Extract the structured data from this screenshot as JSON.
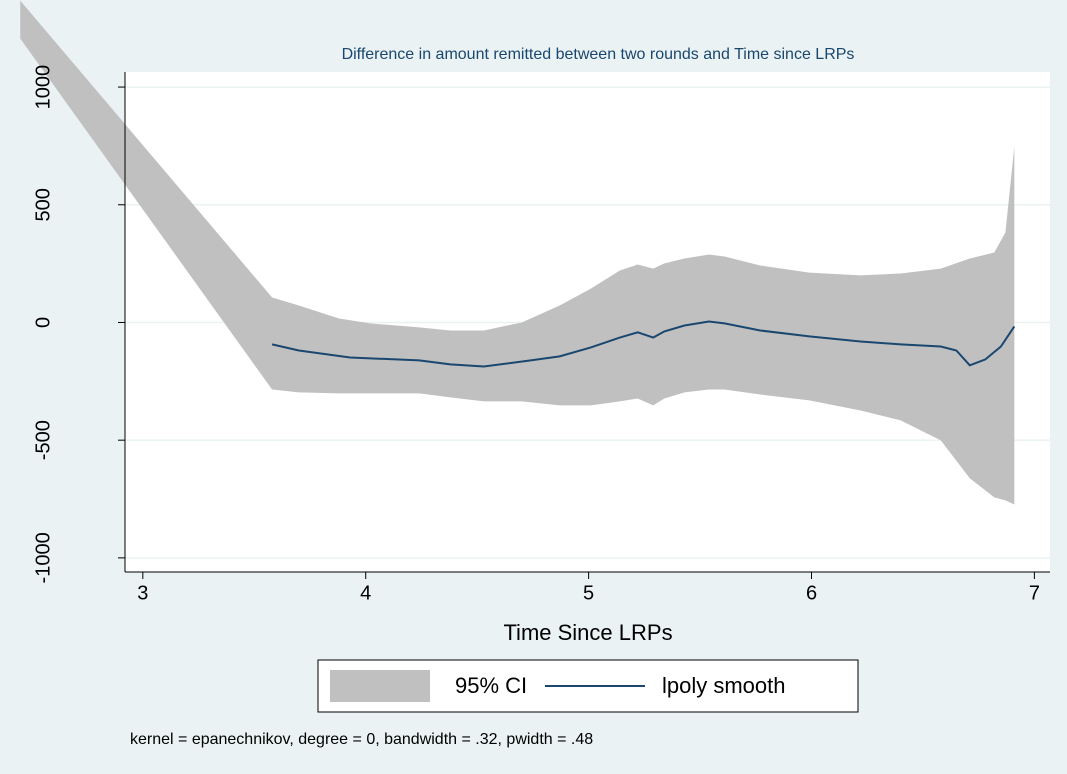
{
  "chart_data": {
    "type": "line",
    "title": "Difference in amount remitted between two rounds and Time since LRPs",
    "xlabel": "Time Since LRPs",
    "note": "kernel = epanechnikov, degree = 0, bandwidth = .32, pwidth = .48",
    "xlim": [
      2.92,
      7.07
    ],
    "ylim": [
      -1060,
      1064
    ],
    "xticks": [
      3,
      4,
      5,
      6,
      7
    ],
    "yticks": [
      -1000,
      -500,
      0,
      500,
      1000
    ],
    "grid": true,
    "band": {
      "name": "95% CI",
      "color": "#c0c0c0",
      "x": [
        2.45,
        3.58,
        3.7,
        3.88,
        4.02,
        4.24,
        4.38,
        4.53,
        4.7,
        4.87,
        5.01,
        5.14,
        5.22,
        5.29,
        5.34,
        5.43,
        5.54,
        5.61,
        5.77,
        5.99,
        6.22,
        6.4,
        6.58,
        6.71,
        6.82,
        6.87,
        6.91
      ],
      "upper": [
        1367,
        106,
        72,
        17,
        -4,
        -21,
        -34,
        -34,
        0,
        72,
        144,
        221,
        246,
        229,
        251,
        272,
        289,
        280,
        242,
        212,
        200,
        208,
        229,
        272,
        297,
        382,
        747
      ],
      "lower": [
        1206,
        -285,
        -297,
        -301,
        -301,
        -301,
        -318,
        -335,
        -335,
        -352,
        -352,
        -335,
        -323,
        -352,
        -323,
        -297,
        -285,
        -285,
        -306,
        -331,
        -374,
        -416,
        -501,
        -662,
        -743,
        -756,
        -773
      ]
    },
    "series": [
      {
        "name": "lpoly smooth",
        "color": "#1a476f",
        "x": [
          3.58,
          3.7,
          3.93,
          4.24,
          4.38,
          4.53,
          4.74,
          4.87,
          5.01,
          5.14,
          5.22,
          5.29,
          5.34,
          5.43,
          5.54,
          5.61,
          5.77,
          5.99,
          6.22,
          6.4,
          6.58,
          6.65,
          6.71,
          6.78,
          6.85,
          6.91
        ],
        "values": [
          -93,
          -119,
          -149,
          -161,
          -178,
          -187,
          -161,
          -144,
          -106,
          -64,
          -42,
          -64,
          -38,
          -13,
          4,
          -4,
          -34,
          -59,
          -81,
          -93,
          -102,
          -119,
          -182,
          -157,
          -102,
          -17
        ]
      }
    ]
  }
}
